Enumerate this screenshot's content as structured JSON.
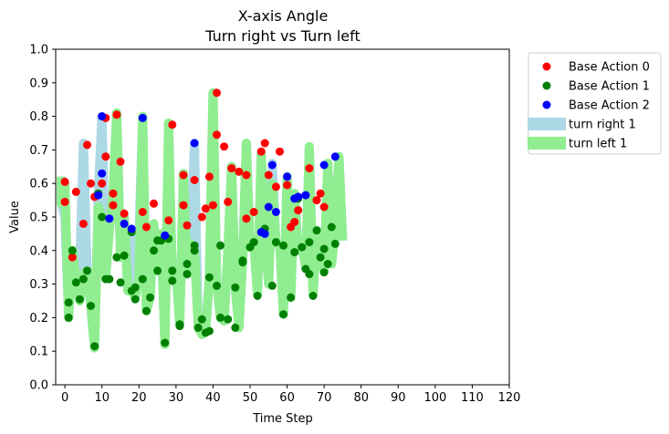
{
  "chart_data": {
    "type": "scatter",
    "title": "X-axis Angle",
    "subtitle": "Turn right vs Turn left",
    "xlabel": "Time Step",
    "ylabel": "Value",
    "xlim": [
      -2.5,
      120
    ],
    "ylim": [
      0.0,
      1.0
    ],
    "xticks": [
      0,
      10,
      20,
      30,
      40,
      50,
      60,
      70,
      80,
      90,
      100,
      110,
      120
    ],
    "yticks": [
      0.0,
      0.1,
      0.2,
      0.3,
      0.4,
      0.5,
      0.6,
      0.7,
      0.8,
      0.9,
      1.0
    ],
    "grid": false,
    "legend_position": "outside-upper-right",
    "series": [
      {
        "name": "Base Action 0",
        "kind": "points",
        "color": "#ff0000",
        "x": [
          0,
          0,
          2,
          3,
          5,
          6,
          7,
          8,
          10,
          11,
          11,
          13,
          13,
          14,
          15,
          16,
          21,
          22,
          24,
          28,
          29,
          32,
          32,
          33,
          35,
          37,
          38,
          39,
          40,
          41,
          41,
          43,
          44,
          45,
          47,
          49,
          49,
          51,
          53,
          54,
          55,
          57,
          58,
          60,
          61,
          62,
          63,
          66,
          68,
          69,
          70
        ],
        "y": [
          0.605,
          0.545,
          0.38,
          0.575,
          0.48,
          0.715,
          0.6,
          0.56,
          0.6,
          0.795,
          0.68,
          0.57,
          0.535,
          0.805,
          0.665,
          0.51,
          0.515,
          0.47,
          0.54,
          0.49,
          0.775,
          0.535,
          0.625,
          0.475,
          0.61,
          0.5,
          0.525,
          0.62,
          0.535,
          0.745,
          0.87,
          0.71,
          0.545,
          0.645,
          0.635,
          0.625,
          0.495,
          0.515,
          0.695,
          0.72,
          0.625,
          0.59,
          0.695,
          0.595,
          0.47,
          0.485,
          0.52,
          0.645,
          0.55,
          0.57,
          0.53
        ]
      },
      {
        "name": "Base Action 1",
        "kind": "points",
        "color": "#008000",
        "x": [
          1,
          1,
          2,
          3,
          4,
          5,
          6,
          7,
          8,
          9,
          10,
          11,
          12,
          14,
          15,
          16,
          18,
          18,
          19,
          19,
          21,
          22,
          23,
          24,
          25,
          25,
          26,
          27,
          28,
          29,
          29,
          31,
          31,
          33,
          33,
          35,
          35,
          36,
          37,
          38,
          39,
          39,
          41,
          42,
          42,
          44,
          46,
          46,
          48,
          48,
          50,
          51,
          52,
          54,
          56,
          57,
          59,
          59,
          61,
          62,
          63,
          64,
          65,
          66,
          66,
          67,
          68,
          69,
          70,
          70,
          71,
          72,
          73
        ],
        "y": [
          0.2,
          0.245,
          0.4,
          0.305,
          0.255,
          0.315,
          0.34,
          0.235,
          0.115,
          0.57,
          0.5,
          0.315,
          0.315,
          0.38,
          0.305,
          0.385,
          0.28,
          0.455,
          0.255,
          0.29,
          0.315,
          0.22,
          0.26,
          0.4,
          0.43,
          0.34,
          0.43,
          0.125,
          0.435,
          0.31,
          0.34,
          0.175,
          0.18,
          0.36,
          0.33,
          0.4,
          0.415,
          0.17,
          0.195,
          0.155,
          0.32,
          0.16,
          0.295,
          0.415,
          0.2,
          0.195,
          0.29,
          0.17,
          0.37,
          0.365,
          0.41,
          0.425,
          0.265,
          0.465,
          0.295,
          0.425,
          0.415,
          0.21,
          0.26,
          0.395,
          0.555,
          0.41,
          0.345,
          0.33,
          0.425,
          0.265,
          0.46,
          0.38,
          0.335,
          0.405,
          0.36,
          0.47,
          0.42
        ]
      },
      {
        "name": "Base Action 2",
        "kind": "points",
        "color": "#0000ff",
        "x": [
          9,
          10,
          10,
          12,
          16,
          18,
          21,
          27,
          35,
          53,
          54,
          55,
          56,
          57,
          60,
          62,
          63,
          65,
          70,
          73
        ],
        "y": [
          0.565,
          0.63,
          0.8,
          0.495,
          0.48,
          0.465,
          0.795,
          0.445,
          0.72,
          0.455,
          0.45,
          0.53,
          0.655,
          0.515,
          0.62,
          0.555,
          0.56,
          0.565,
          0.655,
          0.68
        ]
      },
      {
        "name": "turn right 1",
        "kind": "band",
        "color": "#add8e6",
        "x": [
          -1,
          -1,
          0,
          1,
          2,
          3,
          4,
          5,
          6,
          7,
          8,
          9,
          10,
          11,
          12,
          13,
          14,
          15,
          16,
          17,
          18,
          19,
          20,
          21,
          22,
          23,
          24,
          25,
          26,
          27,
          28,
          29,
          30,
          31,
          32,
          33,
          34,
          35,
          36,
          37,
          38,
          39,
          40,
          41,
          42,
          43,
          44,
          45,
          46,
          47,
          48,
          49,
          50,
          51,
          52,
          53,
          54,
          55,
          56,
          57,
          58,
          59,
          60,
          61,
          62,
          63,
          64,
          65,
          66,
          67,
          68,
          69,
          70,
          71,
          72,
          73,
          74,
          75
        ],
        "y": [
          0.62,
          0.54,
          0.5,
          0.2,
          0.4,
          0.3,
          0.35,
          0.72,
          0.34,
          0.23,
          0.11,
          0.57,
          0.8,
          0.32,
          0.5,
          0.58,
          0.81,
          0.38,
          0.5,
          0.28,
          0.46,
          0.26,
          0.45,
          0.8,
          0.22,
          0.26,
          0.48,
          0.34,
          0.45,
          0.12,
          0.78,
          0.31,
          0.34,
          0.18,
          0.63,
          0.33,
          0.42,
          0.72,
          0.17,
          0.15,
          0.16,
          0.32,
          0.87,
          0.3,
          0.2,
          0.19,
          0.4,
          0.65,
          0.29,
          0.17,
          0.37,
          0.72,
          0.41,
          0.43,
          0.27,
          0.69,
          0.45,
          0.3,
          0.66,
          0.42,
          0.42,
          0.21,
          0.62,
          0.26,
          0.57,
          0.4,
          0.42,
          0.35,
          0.71,
          0.27,
          0.46,
          0.38,
          0.34,
          0.66,
          0.36,
          0.47,
          0.68,
          0.43
        ]
      },
      {
        "name": "turn left 1",
        "kind": "band",
        "color": "#90ee90",
        "x": [
          -1,
          -1,
          0,
          1,
          2,
          3,
          4,
          5,
          6,
          7,
          8,
          9,
          10,
          11,
          12,
          13,
          14,
          15,
          16,
          17,
          18,
          19,
          20,
          21,
          22,
          23,
          24,
          25,
          26,
          27,
          28,
          29,
          30,
          31,
          32,
          33,
          34,
          35,
          36,
          37,
          38,
          39,
          40,
          41,
          42,
          43,
          44,
          45,
          46,
          47,
          48,
          49,
          50,
          51,
          52,
          53,
          54,
          55,
          56,
          57,
          58,
          59,
          60,
          61,
          62,
          63,
          64,
          65,
          66,
          67,
          68,
          69,
          70,
          71,
          72,
          73,
          74,
          75
        ],
        "y": [
          0.62,
          0.54,
          0.6,
          0.2,
          0.4,
          0.31,
          0.25,
          0.33,
          0.34,
          0.24,
          0.11,
          0.53,
          0.5,
          0.32,
          0.46,
          0.57,
          0.81,
          0.38,
          0.5,
          0.28,
          0.28,
          0.26,
          0.32,
          0.8,
          0.22,
          0.26,
          0.48,
          0.34,
          0.45,
          0.12,
          0.78,
          0.31,
          0.34,
          0.18,
          0.63,
          0.33,
          0.42,
          0.4,
          0.17,
          0.15,
          0.16,
          0.32,
          0.87,
          0.3,
          0.2,
          0.19,
          0.4,
          0.65,
          0.29,
          0.17,
          0.37,
          0.72,
          0.41,
          0.43,
          0.27,
          0.69,
          0.45,
          0.3,
          0.6,
          0.42,
          0.42,
          0.21,
          0.62,
          0.26,
          0.57,
          0.4,
          0.42,
          0.35,
          0.71,
          0.27,
          0.46,
          0.38,
          0.34,
          0.66,
          0.36,
          0.47,
          0.68,
          0.43
        ]
      }
    ]
  }
}
